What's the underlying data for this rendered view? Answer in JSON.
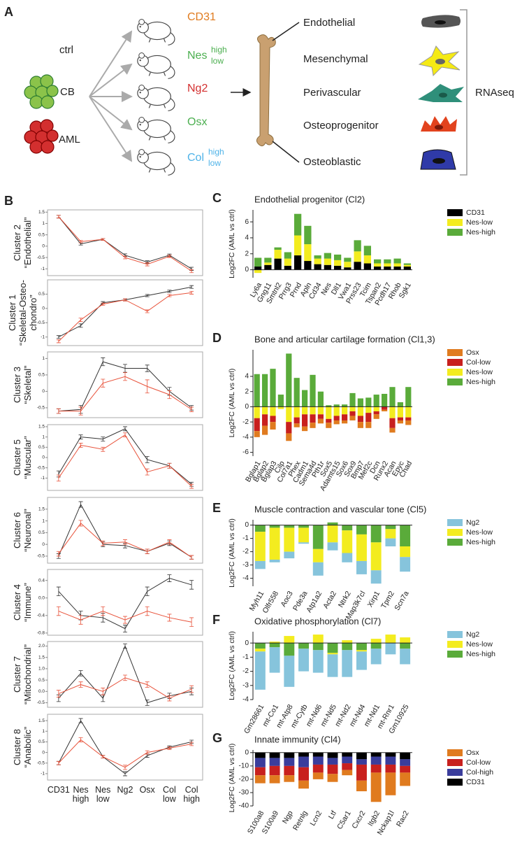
{
  "panel_a": {
    "label": "A",
    "groups": [
      "ctrl",
      "CB",
      "AML"
    ],
    "mice": [
      {
        "name": "CD31"
      },
      {
        "name": "Nes",
        "sup": "high",
        "sub": "low"
      },
      {
        "name": "Ng2"
      },
      {
        "name": "Osx"
      },
      {
        "name": "Col",
        "sup": "high",
        "sub": "low"
      }
    ],
    "cell_types": [
      "Endothelial",
      "Mesenchymal",
      "Perivascular",
      "Osteoprogenitor",
      "Osteoblastic"
    ],
    "method": "RNAseq"
  },
  "chart_data": [
    {
      "type": "line",
      "panel": "B",
      "title": "Cluster 2",
      "subtitle": "“Endothelial”",
      "ylim": [
        -1.3,
        1.6
      ],
      "yticks": [
        -1,
        -0.5,
        0,
        0.5,
        1,
        1.5
      ],
      "series": [
        {
          "color": "#333333",
          "values": [
            1.3,
            0.1,
            0.3,
            -0.4,
            -0.7,
            -0.4,
            -1.0
          ],
          "errors": [
            0.06,
            0.05,
            0.04,
            0.06,
            0.06,
            0.05,
            0.07
          ]
        },
        {
          "color": "#e8523a",
          "values": [
            1.3,
            0.2,
            0.3,
            -0.5,
            -0.8,
            -0.45,
            -1.1
          ],
          "errors": [
            0.06,
            0.05,
            0.04,
            0.06,
            0.07,
            0.05,
            0.07
          ]
        }
      ]
    },
    {
      "type": "line",
      "title": "Cluster 1",
      "subtitle": "“Skeletal-Osteo-chondro”",
      "ylim": [
        -1.3,
        1.0
      ],
      "yticks": [
        -1,
        -0.5,
        0,
        0.5
      ],
      "series": [
        {
          "color": "#333333",
          "values": [
            -1.0,
            -0.6,
            0.2,
            0.3,
            0.45,
            0.6,
            0.75
          ],
          "errors": [
            0.05,
            0.06,
            0.04,
            0.04,
            0.04,
            0.04,
            0.05
          ]
        },
        {
          "color": "#e8523a",
          "values": [
            -1.15,
            -0.4,
            0.15,
            0.3,
            -0.1,
            0.45,
            0.55
          ],
          "errors": [
            0.05,
            0.06,
            0.04,
            0.04,
            0.05,
            0.04,
            0.05
          ]
        }
      ]
    },
    {
      "type": "line",
      "title": "Cluster 3",
      "subtitle": "“Skeletal”",
      "ylim": [
        -0.8,
        1.2
      ],
      "yticks": [
        -0.5,
        0,
        0.5,
        1
      ],
      "series": [
        {
          "color": "#333333",
          "values": [
            -0.6,
            -0.55,
            0.9,
            0.7,
            0.7,
            0.0,
            -0.5
          ],
          "errors": [
            0.07,
            0.12,
            0.12,
            0.12,
            0.1,
            0.12,
            0.07
          ]
        },
        {
          "color": "#e8523a",
          "values": [
            -0.6,
            -0.6,
            0.25,
            0.45,
            0.15,
            -0.1,
            -0.55
          ],
          "errors": [
            0.07,
            0.12,
            0.12,
            0.12,
            0.2,
            0.12,
            0.07
          ]
        }
      ]
    },
    {
      "type": "line",
      "title": "Cluster 5",
      "subtitle": "“Muscular”",
      "ylim": [
        -1.6,
        1.6
      ],
      "yticks": [
        -1,
        -0.5,
        0,
        0.5,
        1,
        1.5
      ],
      "series": [
        {
          "color": "#333333",
          "values": [
            -0.8,
            1.0,
            0.9,
            1.4,
            -0.1,
            -0.4,
            -1.3
          ],
          "errors": [
            0.15,
            0.1,
            0.1,
            0.1,
            0.15,
            0.12,
            0.1
          ]
        },
        {
          "color": "#e8523a",
          "values": [
            -1.0,
            0.6,
            0.4,
            1.1,
            -0.7,
            -0.4,
            -1.4
          ],
          "errors": [
            0.15,
            0.1,
            0.1,
            0.1,
            0.15,
            0.12,
            0.1
          ]
        }
      ]
    },
    {
      "type": "line",
      "title": "Cluster 6",
      "subtitle": "“Neuronal”",
      "ylim": [
        -0.8,
        2.0
      ],
      "yticks": [
        -0.5,
        0,
        0.5,
        1,
        1.5
      ],
      "series": [
        {
          "color": "#333333",
          "values": [
            -0.5,
            1.7,
            0.0,
            -0.05,
            -0.3,
            0.05,
            -0.55
          ],
          "errors": [
            0.1,
            0.12,
            0.1,
            0.1,
            0.1,
            0.1,
            0.08
          ]
        },
        {
          "color": "#e8523a",
          "values": [
            -0.4,
            0.9,
            0.05,
            0.1,
            -0.3,
            0.1,
            -0.55
          ],
          "errors": [
            0.1,
            0.12,
            0.1,
            0.1,
            0.1,
            0.1,
            0.08
          ]
        }
      ]
    },
    {
      "type": "line",
      "title": "Cluster 4",
      "subtitle": "“Immune”",
      "ylim": [
        -0.85,
        0.65
      ],
      "yticks": [
        -0.8,
        -0.4,
        {
          "value": 0,
          "label": "0.0"
        },
        0.4
      ],
      "series": [
        {
          "color": "#333333",
          "values": [
            0.15,
            -0.4,
            -0.45,
            -0.7,
            0.15,
            0.45,
            0.3
          ],
          "errors": [
            0.1,
            0.1,
            0.1,
            0.08,
            0.1,
            0.08,
            0.1
          ]
        },
        {
          "color": "#e8523a",
          "values": [
            -0.3,
            -0.5,
            -0.3,
            -0.5,
            -0.3,
            -0.45,
            -0.55
          ],
          "errors": [
            0.1,
            0.1,
            0.1,
            0.08,
            0.1,
            0.08,
            0.1
          ]
        }
      ]
    },
    {
      "type": "line",
      "title": "Cluster 7",
      "subtitle": "“Mitochondrial”",
      "ylim": [
        -0.7,
        2.2
      ],
      "yticks": [
        -0.5,
        {
          "value": 0,
          "label": "0.0"
        },
        0.5,
        {
          "value": 1,
          "label": "1.0"
        },
        1.5,
        {
          "value": 2,
          "label": "2.0"
        }
      ],
      "series": [
        {
          "color": "#333333",
          "values": [
            -0.3,
            0.8,
            -0.3,
            2.0,
            -0.5,
            -0.2,
            0.0
          ],
          "errors": [
            0.15,
            0.12,
            0.15,
            0.1,
            0.12,
            0.12,
            0.15
          ]
        },
        {
          "color": "#e8523a",
          "values": [
            -0.1,
            0.3,
            0.0,
            0.6,
            0.3,
            -0.3,
            0.1
          ],
          "errors": [
            0.15,
            0.12,
            0.15,
            0.12,
            0.12,
            0.12,
            0.15
          ]
        }
      ]
    },
    {
      "type": "line",
      "title": "Cluster 8",
      "subtitle": "“Anabolic”",
      "ylim": [
        -1.3,
        1.8
      ],
      "yticks": [
        -1,
        -0.5,
        0,
        0.5,
        1,
        1.5
      ],
      "categories": [
        "CD31",
        "Nes high",
        "Nes low",
        "Ng2",
        "Osx",
        "Col low",
        "Col high"
      ],
      "series": [
        {
          "color": "#333333",
          "values": [
            -0.5,
            1.5,
            -0.2,
            -1.0,
            -0.15,
            0.25,
            0.5
          ],
          "errors": [
            0.08,
            0.1,
            0.06,
            0.1,
            0.08,
            0.06,
            0.08
          ]
        },
        {
          "color": "#e8523a",
          "values": [
            -0.5,
            0.6,
            -0.2,
            -0.7,
            0.0,
            0.2,
            0.4
          ],
          "errors": [
            0.08,
            0.1,
            0.06,
            0.1,
            0.08,
            0.06,
            0.08
          ]
        }
      ]
    },
    {
      "type": "bar",
      "panel": "C",
      "title": "Endothelial progenitor (Cl2)",
      "y_label": "Log2FC (AML vs ctrl)",
      "ylim": [
        -1,
        7.5
      ],
      "yticks": [
        0,
        2,
        4,
        6
      ],
      "categories": [
        "Ly6a",
        "Gng11",
        "Smtnl2",
        "Prrg3",
        "Prnd",
        "Apln",
        "Cd34",
        "Nes",
        "Dll1",
        "Vwa1",
        "Prss23",
        "Tcim",
        "Tspan2",
        "Pcdh17",
        "Rhob",
        "Sgk1"
      ],
      "series": [
        {
          "name": "CD31",
          "color": "#000000",
          "values": [
            0.4,
            0.6,
            1.4,
            0.5,
            1.8,
            1.1,
            0.7,
            0.6,
            0.5,
            0.3,
            1.0,
            0.8,
            0.4,
            0.4,
            0.4,
            0.4
          ]
        },
        {
          "name": "Nes-low",
          "color": "#f3ec1f",
          "values": [
            -0.4,
            0.3,
            1.1,
            0.9,
            2.5,
            2.1,
            0.7,
            0.8,
            0.7,
            0.7,
            1.3,
            1.0,
            0.4,
            0.4,
            0.4,
            0.2
          ]
        },
        {
          "name": "Nes-high",
          "color": "#5aab3a",
          "values": [
            1.1,
            0.6,
            0.3,
            0.8,
            2.7,
            2.3,
            0.4,
            0.7,
            0.7,
            0.5,
            1.4,
            1.2,
            0.5,
            0.5,
            0.6,
            0.2
          ]
        }
      ]
    },
    {
      "type": "bar",
      "panel": "D",
      "title": "Bone and articular cartilage formation (Cl1,3)",
      "y_label": "Log2FC (AML vs ctrl)",
      "ylim": [
        -6.5,
        7.5
      ],
      "yticks": [
        -6,
        -4,
        -2,
        0,
        2,
        4
      ],
      "categories": [
        "Bglap1",
        "Bglap2",
        "Bglap3",
        "Cilp",
        "Col7a1",
        "Phex",
        "Cadm1",
        "Sema4d",
        "Pth1r",
        "Sox5",
        "Adamts15",
        "Sox6",
        "Sox9",
        "Bmp7",
        "Mef2c",
        "Dcn",
        "Runx2",
        "Acan",
        "Epyc",
        "Chad"
      ],
      "series": [
        {
          "name": "Osx",
          "color": "#e07b1f",
          "values": [
            -0.8,
            -1.2,
            -1.0,
            0,
            -1.0,
            -0.5,
            -0.6,
            -0.7,
            -0.6,
            -0.7,
            -0.5,
            -0.4,
            -0.6,
            -0.8,
            -0.8,
            -0.6,
            -0.2,
            -0.6,
            -0.4,
            -0.6
          ]
        },
        {
          "name": "Col-low",
          "color": "#c8201e",
          "values": [
            -1.7,
            -1.5,
            -0.8,
            0,
            -1.5,
            -0.8,
            -1.6,
            -1.1,
            -0.6,
            -0.5,
            -0.6,
            -0.8,
            -0.6,
            -0.8,
            -1.2,
            -0.4,
            -0.4,
            -1.3,
            -0.4,
            -0.4
          ]
        },
        {
          "name": "Nes-low",
          "color": "#f3ec1f",
          "values": [
            -1.5,
            -1.0,
            -1.2,
            -0.3,
            -2.0,
            -1.4,
            -1.0,
            -1.0,
            -1.0,
            -1.6,
            -1.2,
            -1.0,
            -0.6,
            -1.2,
            -0.8,
            -0.6,
            0,
            -1.5,
            -1.4,
            -1.4
          ]
        },
        {
          "name": "Nes-high",
          "color": "#5aab3a",
          "values": [
            4.3,
            4.3,
            5.0,
            1.6,
            7.0,
            3.8,
            2.2,
            4.2,
            2.0,
            0.2,
            0.3,
            0.3,
            1.8,
            1.1,
            1.2,
            1.6,
            1.7,
            2.6,
            0.6,
            2.6
          ]
        }
      ]
    },
    {
      "type": "bar",
      "panel": "E",
      "title": "Muscle contraction and vascular tone (Cl5)",
      "y_label": "Log2FC (AML vs ctrl)",
      "ylim": [
        -4.6,
        0.4
      ],
      "yticks": [
        -4,
        -3,
        -2,
        -1,
        0
      ],
      "categories": [
        "Myh11",
        "Olfr558",
        "Aoc3",
        "Pde3a",
        "Atp1a2",
        "Acta2",
        "Ntrk2",
        "Map3k7cl",
        "Xirp1",
        "Tpm2",
        "Scn7a"
      ],
      "series": [
        {
          "name": "Ng2",
          "color": "#86c4dc",
          "values": [
            -0.6,
            -0.2,
            -0.5,
            -0.1,
            -1.0,
            -0.6,
            -0.7,
            -1.0,
            -1.0,
            -0.6,
            -1.1
          ]
        },
        {
          "name": "Nes-low",
          "color": "#f3ec1f",
          "values": [
            -2.2,
            -2.4,
            -1.8,
            -1.1,
            -1.0,
            -1.3,
            -1.7,
            -2.0,
            -2.1,
            -0.7,
            -0.8
          ]
        },
        {
          "name": "Nes-high",
          "color": "#5aab3a",
          "values": [
            -0.5,
            -0.2,
            -0.2,
            -0.2,
            -1.8,
            0.2,
            -0.4,
            -0.7,
            -1.3,
            -0.3,
            -1.6
          ]
        }
      ]
    },
    {
      "type": "bar",
      "panel": "F",
      "title": "Oxidative phosphorylation (Cl7)",
      "y_label": "Log2FC (AML vs ctrl)",
      "ylim": [
        -4,
        0.8
      ],
      "yticks": [
        -4,
        -3,
        -2,
        -1,
        0
      ],
      "categories": [
        "Gm28661",
        "mt-Co1",
        "mt-Atp8",
        "mt-Cytb",
        "mt-Nd6",
        "mt-Nd5",
        "mt-Nd2",
        "mt-Nd4",
        "mt-Nd1",
        "mt-Rnr1",
        "Gm10925"
      ],
      "series": [
        {
          "name": "Ng2",
          "color": "#86c4dc",
          "values": [
            -2.7,
            -1.8,
            -2.2,
            -1.6,
            -1.6,
            -1.6,
            -1.9,
            -1.3,
            -1.1,
            -0.8,
            -1.1
          ]
        },
        {
          "name": "Nes-low",
          "color": "#f3ec1f",
          "values": [
            -0.2,
            0.1,
            0.5,
            0,
            0.6,
            -0.1,
            0.2,
            -0.1,
            0.3,
            0.6,
            0.4
          ]
        },
        {
          "name": "Nes-high",
          "color": "#5aab3a",
          "values": [
            -0.4,
            -0.3,
            -0.9,
            -0.4,
            -0.5,
            -0.7,
            -0.5,
            -0.5,
            -0.4,
            0,
            -0.4
          ]
        }
      ]
    },
    {
      "type": "bar",
      "panel": "G",
      "title": "Innate immunity (Cl4)",
      "y_label": "Log2FC (AML vs ctrl)",
      "ylim": [
        -40,
        2
      ],
      "yticks": [
        -40,
        -30,
        -20,
        -10,
        0
      ],
      "categories": [
        "S100a8",
        "S100a9",
        "Ngp",
        "Retnlg",
        "Lcn2",
        "Ltf",
        "C5ar1",
        "Cxcr2",
        "Itgb2",
        "Nckap1l",
        "Rac2"
      ],
      "series": [
        {
          "name": "Osx",
          "color": "#e07b1f",
          "values": [
            -6,
            -6,
            -5,
            -6,
            -5,
            -6,
            -4,
            -8,
            -22,
            -17,
            -10
          ]
        },
        {
          "name": "Col-low",
          "color": "#c8201e",
          "values": [
            -6,
            -7,
            -7,
            -10,
            -6,
            -7,
            -5,
            -12,
            -6,
            -6,
            -5
          ]
        },
        {
          "name": "Col-high",
          "color": "#3a3d9c",
          "values": [
            -7,
            -6,
            -6,
            -8,
            -6,
            -5,
            -5,
            -4,
            -6,
            -6,
            -5
          ]
        },
        {
          "name": "CD31",
          "color": "#000000",
          "values": [
            -4,
            -4,
            -4,
            -3,
            -3,
            -4,
            -3,
            -5,
            -3,
            -3,
            -5
          ]
        }
      ]
    }
  ]
}
